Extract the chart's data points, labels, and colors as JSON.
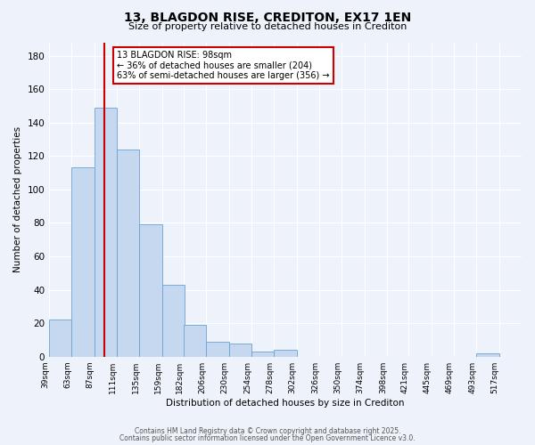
{
  "title": "13, BLAGDON RISE, CREDITON, EX17 1EN",
  "subtitle": "Size of property relative to detached houses in Crediton",
  "xlabel": "Distribution of detached houses by size in Crediton",
  "ylabel": "Number of detached properties",
  "bar_color": "#c5d8f0",
  "bar_edge_color": "#6aa3d5",
  "background_color": "#eef2fa",
  "grid_color": "#ffffff",
  "vline_value": 98,
  "vline_color": "#cc0000",
  "annotation_text": "13 BLAGDON RISE: 98sqm\n← 36% of detached houses are smaller (204)\n63% of semi-detached houses are larger (356) →",
  "annotation_box_color": "#ffffff",
  "annotation_box_edge": "#cc0000",
  "bins_left_edges": [
    39,
    63,
    87,
    111,
    135,
    159,
    182,
    206,
    230,
    254,
    278,
    302,
    326,
    350,
    374,
    398,
    421,
    445,
    469,
    493,
    517
  ],
  "bin_width": 24,
  "counts": [
    22,
    113,
    149,
    124,
    79,
    43,
    19,
    9,
    8,
    3,
    4,
    0,
    0,
    0,
    0,
    0,
    0,
    0,
    0,
    2,
    0
  ],
  "ylim": [
    0,
    188
  ],
  "yticks": [
    0,
    20,
    40,
    60,
    80,
    100,
    120,
    140,
    160,
    180
  ],
  "footer_line1": "Contains HM Land Registry data © Crown copyright and database right 2025.",
  "footer_line2": "Contains public sector information licensed under the Open Government Licence v3.0."
}
